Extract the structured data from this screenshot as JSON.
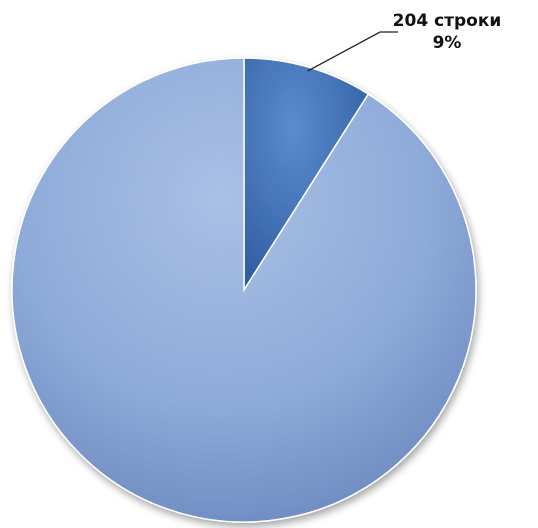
{
  "chart_data": {
    "type": "pie",
    "title": "",
    "start_angle_deg": 0,
    "slices": [
      {
        "value": 9,
        "color": "#4a79bd",
        "label_text": "204 строки",
        "label_percent": "9%",
        "label_position": "top-right"
      },
      {
        "value": 91,
        "color": "#7f9fd2",
        "label_text": "",
        "label_percent": ""
      }
    ],
    "legend": "none",
    "style": "3d-shaded"
  }
}
